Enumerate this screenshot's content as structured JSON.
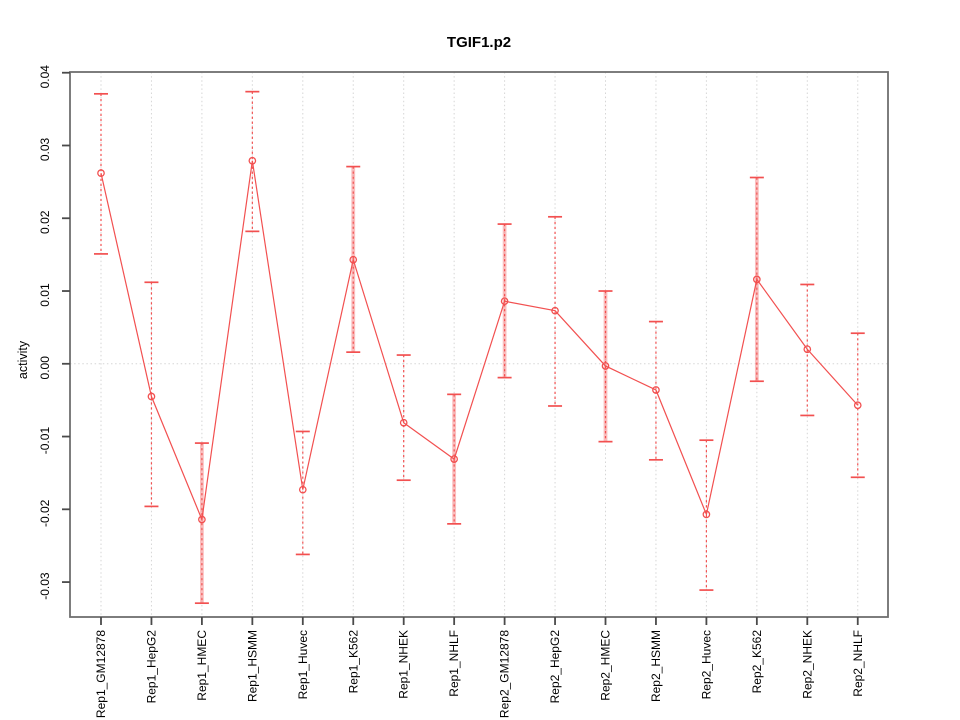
{
  "chart_data": {
    "type": "line",
    "title": "TGIF1.p2",
    "ylabel": "activity",
    "xlabel": "",
    "legend": "none",
    "grid": "vertical dotted gridline per category; dotted horizontal line at 0",
    "categories": [
      "Rep1_GM12878",
      "Rep1_HepG2",
      "Rep1_HMEC",
      "Rep1_HSMM",
      "Rep1_Huvec",
      "Rep1_K562",
      "Rep1_NHEK",
      "Rep1_NHLF",
      "Rep2_GM12878",
      "Rep2_HepG2",
      "Rep2_HMEC",
      "Rep2_HSMM",
      "Rep2_Huvec",
      "Rep2_K562",
      "Rep2_NHEK",
      "Rep2_NHLF"
    ],
    "series": [
      {
        "name": "activity",
        "values": [
          0.0262,
          -0.0045,
          -0.0214,
          0.0279,
          -0.0173,
          0.0143,
          -0.0081,
          -0.0131,
          0.0086,
          0.0073,
          -0.0003,
          -0.0036,
          -0.0207,
          0.0116,
          0.002,
          -0.0057
        ]
      }
    ],
    "error_high": [
      0.0371,
      0.0112,
      -0.0109,
      0.0374,
      -0.0093,
      0.0271,
      0.0012,
      -0.0042,
      0.0192,
      0.0202,
      0.01,
      0.0058,
      -0.0105,
      0.0256,
      0.0109,
      0.0042
    ],
    "error_low": [
      0.0151,
      -0.0196,
      -0.0329,
      0.0182,
      -0.0262,
      0.0016,
      -0.016,
      -0.022,
      -0.0019,
      -0.0058,
      -0.0107,
      -0.0132,
      -0.0311,
      -0.0024,
      -0.0071,
      -0.0156
    ],
    "band_highlight_indices": [
      2,
      5,
      7,
      8,
      10,
      13
    ],
    "yticks": [
      0.04,
      0.03,
      0.02,
      0.01,
      0.0,
      -0.01,
      -0.02,
      -0.03
    ],
    "ytick_labels": [
      "0.04",
      "0.03",
      "0.02",
      "0.01",
      "0.00",
      "-0.01",
      "-0.02",
      "-0.03"
    ],
    "ylim": [
      -0.0348,
      0.0401
    ],
    "zero_line": 0,
    "colors": {
      "series": "#f25050",
      "band": "rgba(246,110,110,0.45)",
      "grid": "#d6d6d6",
      "box": "#6f6f6f",
      "tick": "#4a4a4a",
      "text": "#000000"
    }
  }
}
